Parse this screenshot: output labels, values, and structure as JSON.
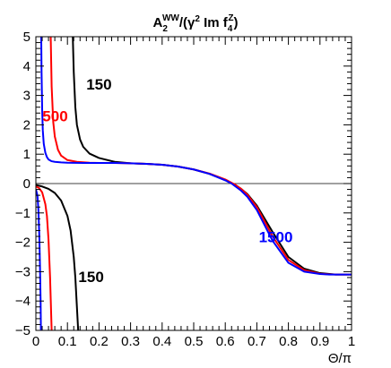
{
  "chart_data": {
    "type": "line",
    "title_parts": {
      "main": "A",
      "sub": "2",
      "sup": "WW",
      "mid": "/(γ",
      "mid_sup": "2",
      "mid2": " Im f",
      "f_sub": "4",
      "f_sup": "Z",
      "end": ")"
    },
    "xlabel": "Θ/π",
    "ylabel": "",
    "xlim": [
      0,
      1
    ],
    "ylim": [
      -5,
      5
    ],
    "x_ticks": [
      {
        "v": 0,
        "label": "0"
      },
      {
        "v": 0.1,
        "label": "0.1"
      },
      {
        "v": 0.2,
        "label": "0.2"
      },
      {
        "v": 0.3,
        "label": "0.3"
      },
      {
        "v": 0.4,
        "label": "0.4"
      },
      {
        "v": 0.5,
        "label": "0.5"
      },
      {
        "v": 0.6,
        "label": "0.6"
      },
      {
        "v": 0.7,
        "label": "0.7"
      },
      {
        "v": 0.8,
        "label": "0.8"
      },
      {
        "v": 0.9,
        "label": "0.9"
      },
      {
        "v": 1,
        "label": "1"
      }
    ],
    "y_ticks": [
      {
        "v": -5,
        "label": "−5"
      },
      {
        "v": -4,
        "label": "−4"
      },
      {
        "v": -3,
        "label": "−3"
      },
      {
        "v": -2,
        "label": "−2"
      },
      {
        "v": -1,
        "label": "−1"
      },
      {
        "v": 0,
        "label": "0"
      },
      {
        "v": 1,
        "label": "1"
      },
      {
        "v": 2,
        "label": "2"
      },
      {
        "v": 3,
        "label": "3"
      },
      {
        "v": 4,
        "label": "4"
      },
      {
        "v": 5,
        "label": "5"
      }
    ],
    "zero_line": true,
    "colors": {
      "black": "#000000",
      "red": "#ff0000",
      "blue": "#0000ff"
    },
    "series": [
      {
        "key": "black-upper",
        "color": "#000000",
        "x": [
          0.117,
          0.12,
          0.125,
          0.13,
          0.14,
          0.15,
          0.17,
          0.2,
          0.25,
          0.3,
          0.35,
          0.4,
          0.45,
          0.5,
          0.55,
          0.6,
          0.63,
          0.65,
          0.67,
          0.7,
          0.75,
          0.8,
          0.85,
          0.9,
          0.93,
          0.95,
          0.97,
          1.0
        ],
        "y": [
          5,
          3.8,
          2.6,
          2.0,
          1.5,
          1.25,
          1.02,
          0.87,
          0.74,
          0.69,
          0.67,
          0.64,
          0.58,
          0.48,
          0.33,
          0.12,
          -0.04,
          -0.18,
          -0.36,
          -0.75,
          -1.65,
          -2.5,
          -2.9,
          -3.05,
          -3.08,
          -3.1,
          -3.1,
          -3.1
        ]
      },
      {
        "key": "black-lower",
        "color": "#000000",
        "x": [
          0.0,
          0.02,
          0.04,
          0.06,
          0.08,
          0.1,
          0.11,
          0.12,
          0.125,
          0.13,
          0.134
        ],
        "y": [
          -0.05,
          -0.1,
          -0.18,
          -0.32,
          -0.58,
          -1.1,
          -1.6,
          -2.5,
          -3.2,
          -4.2,
          -5
        ]
      },
      {
        "key": "red-upper",
        "color": "#ff0000",
        "x": [
          0.047,
          0.05,
          0.055,
          0.06,
          0.07,
          0.08,
          0.1,
          0.13,
          0.17,
          0.2,
          0.25,
          0.3,
          0.35,
          0.4,
          0.45,
          0.5,
          0.55,
          0.6,
          0.63,
          0.65,
          0.67,
          0.7,
          0.75,
          0.8,
          0.85,
          0.9,
          0.93,
          0.95,
          0.97,
          1.0
        ],
        "y": [
          5,
          3.3,
          2.1,
          1.6,
          1.15,
          0.95,
          0.8,
          0.74,
          0.71,
          0.7,
          0.7,
          0.69,
          0.67,
          0.64,
          0.58,
          0.48,
          0.34,
          0.14,
          -0.03,
          -0.18,
          -0.38,
          -0.8,
          -1.8,
          -2.6,
          -2.95,
          -3.07,
          -3.09,
          -3.1,
          -3.1,
          -3.1
        ]
      },
      {
        "key": "red-lower",
        "color": "#ff0000",
        "x": [
          0.0,
          0.01,
          0.02,
          0.03,
          0.035,
          0.04,
          0.045,
          0.05
        ],
        "y": [
          -0.1,
          -0.15,
          -0.3,
          -0.7,
          -1.1,
          -1.9,
          -3.2,
          -5
        ]
      },
      {
        "key": "blue-upper",
        "color": "#0000ff",
        "x": [
          0.017,
          0.018,
          0.02,
          0.022,
          0.025,
          0.03,
          0.035,
          0.04,
          0.05,
          0.06,
          0.08,
          0.1,
          0.15,
          0.2,
          0.25,
          0.3,
          0.35,
          0.4,
          0.45,
          0.5,
          0.55,
          0.6,
          0.62,
          0.65,
          0.67,
          0.7,
          0.75,
          0.8,
          0.85,
          0.9,
          0.93,
          0.95,
          0.97,
          1.0
        ],
        "y": [
          5,
          3.8,
          2.5,
          1.8,
          1.35,
          1.05,
          0.9,
          0.82,
          0.76,
          0.74,
          0.72,
          0.71,
          0.7,
          0.7,
          0.7,
          0.69,
          0.67,
          0.64,
          0.58,
          0.48,
          0.33,
          0.11,
          0.0,
          -0.24,
          -0.45,
          -0.9,
          -1.95,
          -2.7,
          -3.0,
          -3.08,
          -3.1,
          -3.1,
          -3.1,
          -3.1
        ]
      },
      {
        "key": "blue-lower",
        "color": "#0000ff",
        "x": [
          0.0,
          0.005,
          0.008,
          0.011,
          0.013,
          0.015,
          0.016
        ],
        "y": [
          -0.2,
          -0.4,
          -0.9,
          -1.8,
          -2.8,
          -4.0,
          -5
        ]
      }
    ],
    "annotations": [
      {
        "text": "150",
        "color": "#000000",
        "x": 0.2,
        "y": 3.2
      },
      {
        "text": "500",
        "color": "#ff0000",
        "x": 0.061,
        "y": 2.12
      },
      {
        "text": "150",
        "color": "#000000",
        "x": 0.175,
        "y": -3.35
      },
      {
        "text": "1500",
        "color": "#0000ff",
        "x": 0.76,
        "y": -2.0
      }
    ]
  }
}
